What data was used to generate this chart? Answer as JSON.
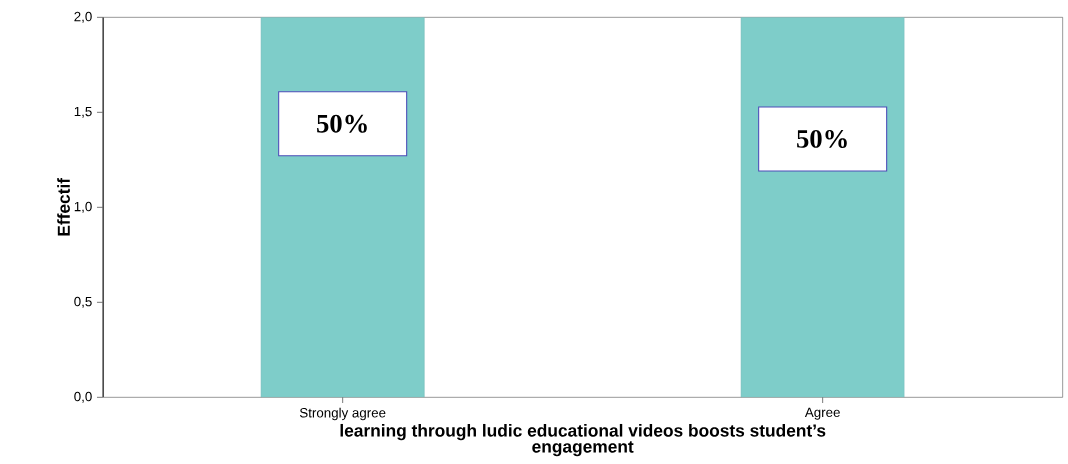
{
  "chart_data": {
    "type": "bar",
    "xlabel": "learning through ludic educational videos boosts student’s engagement",
    "ylabel": "Effectif",
    "categories": [
      "Strongly agree",
      "Agree"
    ],
    "values": [
      2,
      2
    ],
    "color": "#7ecdc9",
    "annotations": [
      "50%",
      "50%"
    ],
    "ylim": [
      0,
      2
    ],
    "yticks": [
      {
        "value": 0,
        "label": "0,0"
      },
      {
        "value": 0.5,
        "label": "0,5"
      },
      {
        "value": 1,
        "label": "1,0"
      },
      {
        "value": 1.5,
        "label": "1,5"
      },
      {
        "value": 2,
        "label": "2,0"
      }
    ],
    "grid": false
  }
}
